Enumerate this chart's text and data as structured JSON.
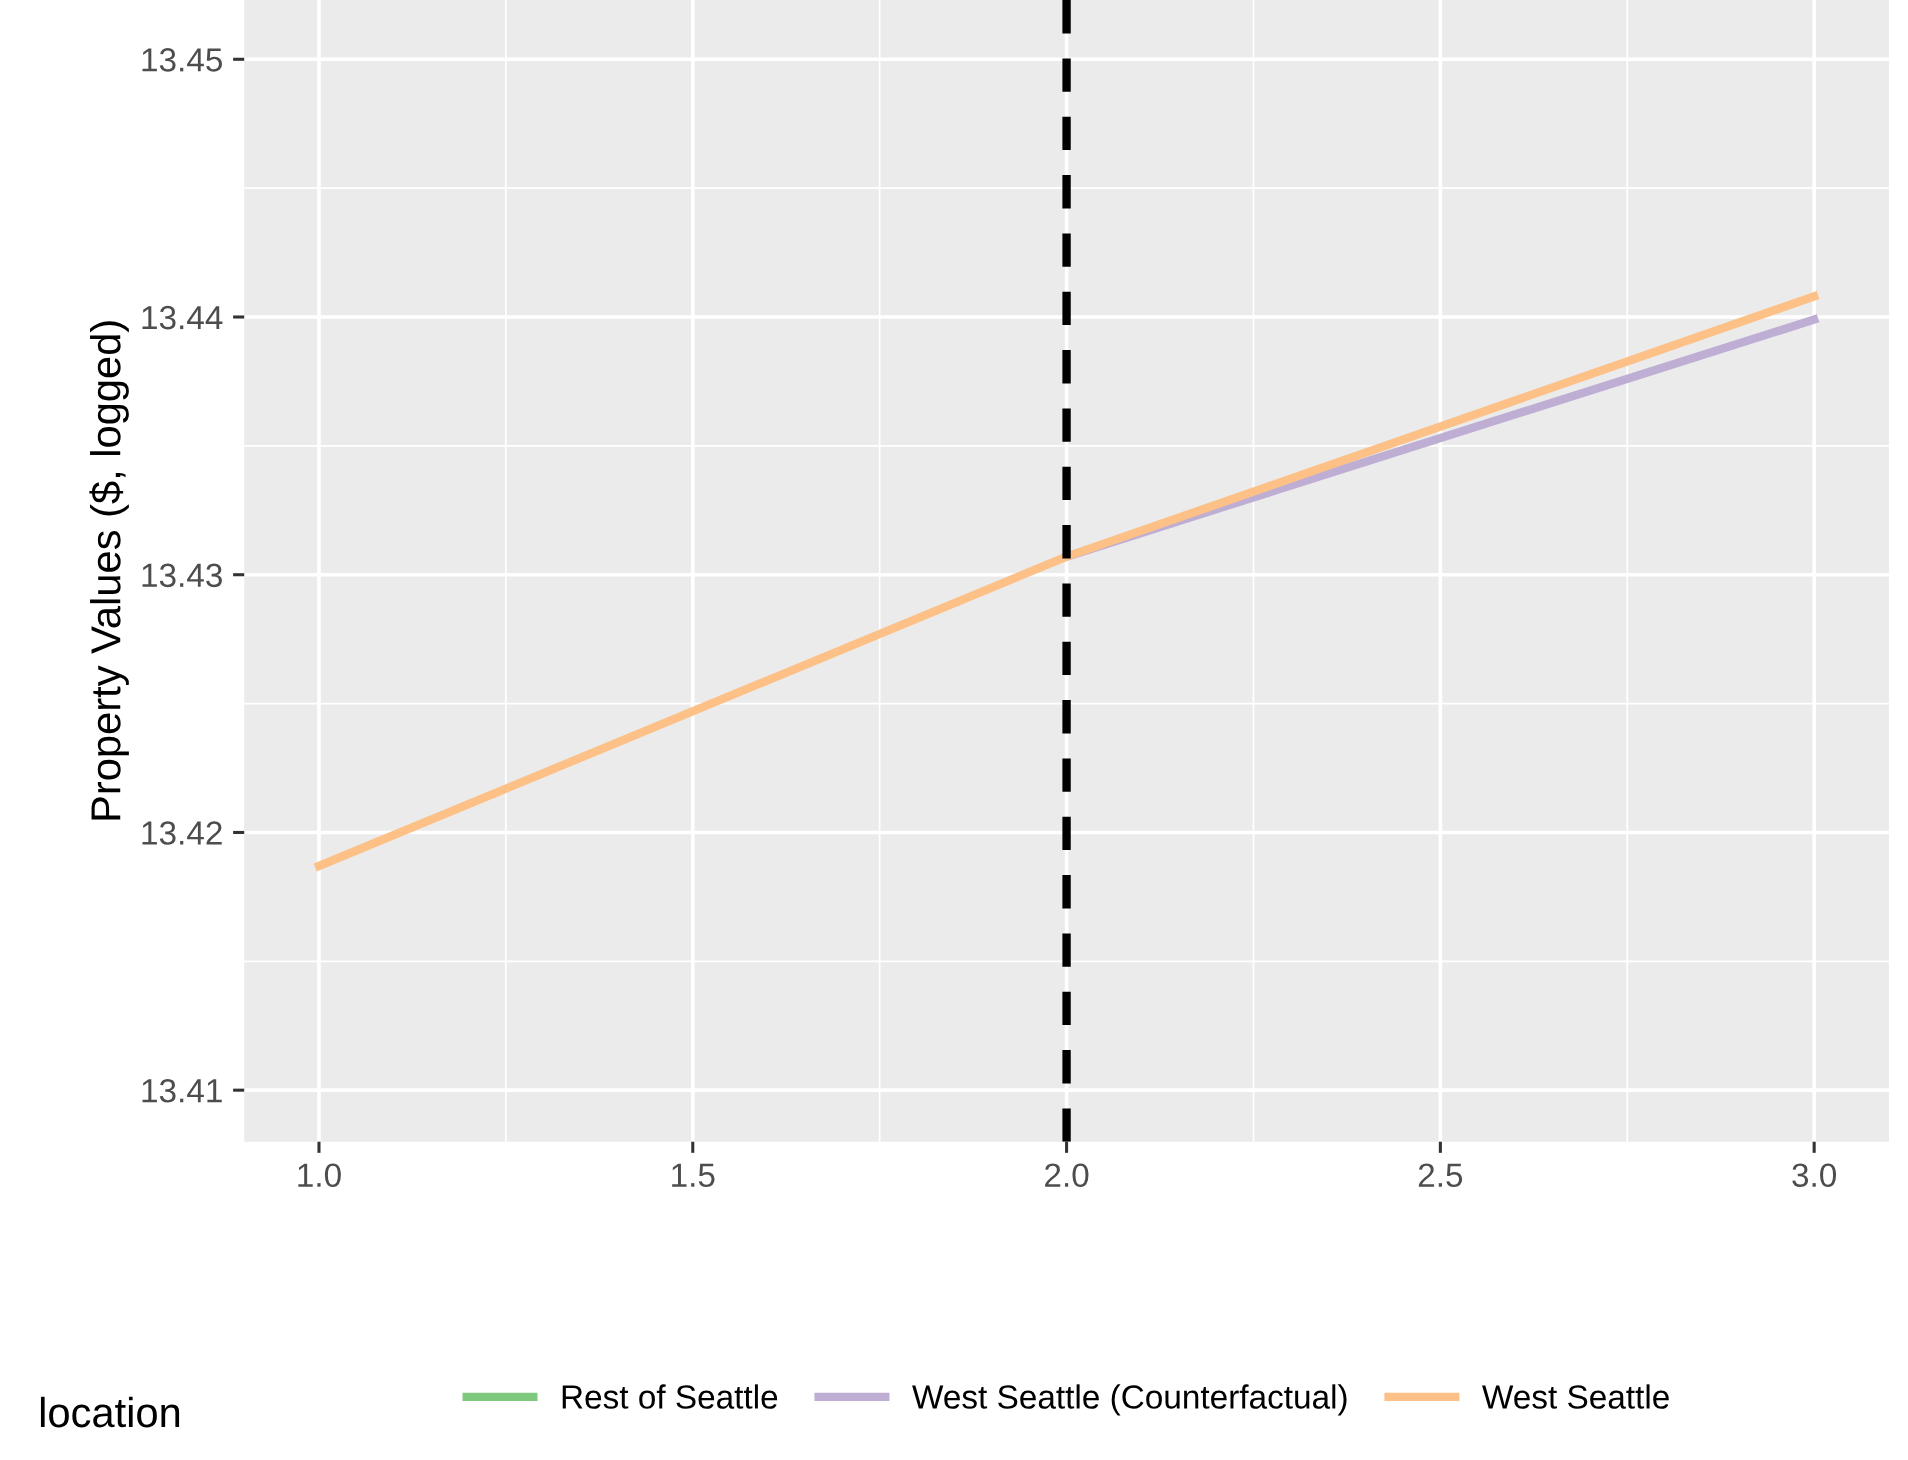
{
  "chart_data": {
    "type": "line",
    "ylabel": "Property Values ($, logged)",
    "legend_title": "location",
    "x": [
      1.0,
      2.0,
      3.0
    ],
    "series": [
      {
        "name": "Rest of Seattle",
        "color": "#7fc97f",
        "values": [
          null,
          null,
          null
        ]
      },
      {
        "name": "West Seattle (Counterfactual)",
        "color": "#beaed4",
        "values": [
          null,
          13.4307,
          13.4399
        ]
      },
      {
        "name": "West Seattle",
        "color": "#fdc086",
        "values": [
          13.4187,
          13.4307,
          13.4408
        ]
      }
    ],
    "xlim": [
      0.9,
      3.1
    ],
    "xticks": [
      {
        "value": 1.0,
        "label": "1.0"
      },
      {
        "value": 1.5,
        "label": "1.5"
      },
      {
        "value": 2.0,
        "label": "2.0"
      },
      {
        "value": 2.5,
        "label": "2.5"
      },
      {
        "value": 3.0,
        "label": "3.0"
      }
    ],
    "ylim": [
      13.408,
      13.4523
    ],
    "yticks": [
      13.41,
      13.42,
      13.43,
      13.44,
      13.45
    ],
    "ref_lines": [
      {
        "axis": "x",
        "value": 2.0,
        "label": null,
        "color": "#000000",
        "line_style": "dashed"
      }
    ],
    "grid": true,
    "legend": "bottom",
    "line_style": "solid",
    "marker": "none"
  }
}
